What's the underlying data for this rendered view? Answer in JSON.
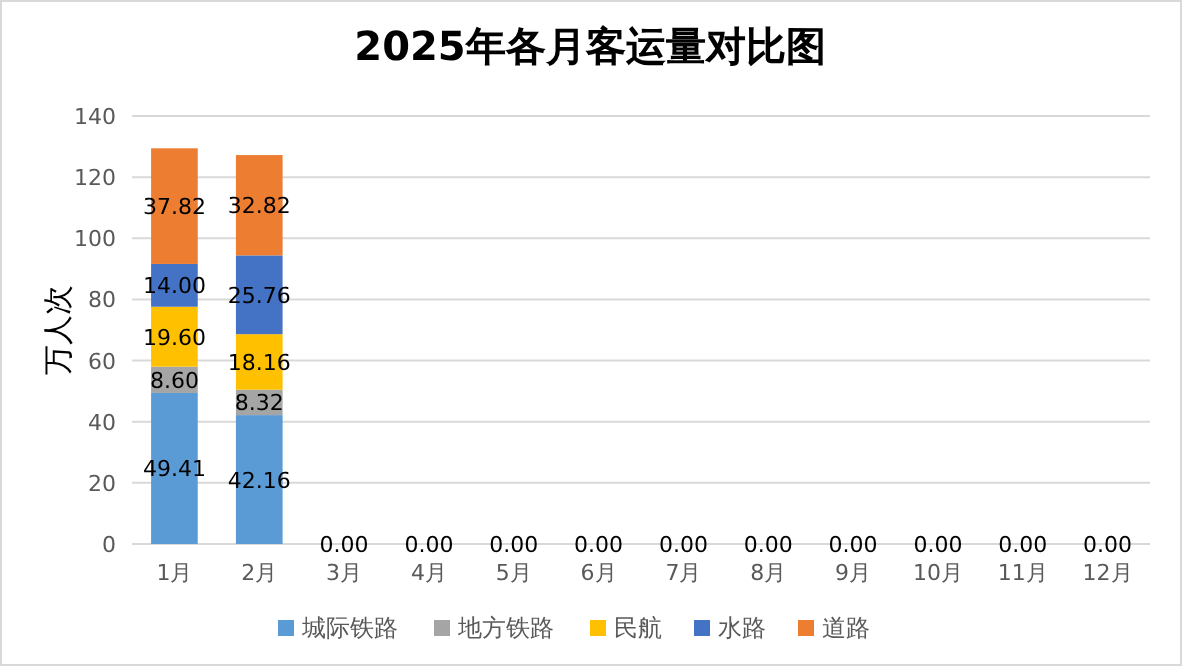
{
  "chart_data": {
    "type": "bar",
    "stacked": true,
    "title": "2025年各月客运量对比图",
    "ylabel": "万人次",
    "categories": [
      "1月",
      "2月",
      "3月",
      "4月",
      "5月",
      "6月",
      "7月",
      "8月",
      "9月",
      "10月",
      "11月",
      "12月"
    ],
    "ylim": [
      0,
      140
    ],
    "yticks": [
      0,
      20,
      40,
      60,
      80,
      100,
      120,
      140
    ],
    "grid": "y",
    "legend": "bottom",
    "series": [
      {
        "name": "城际铁路",
        "color": "#5b9bd5",
        "values": [
          49.41,
          42.16,
          0,
          0,
          0,
          0,
          0,
          0,
          0,
          0,
          0,
          0
        ],
        "value_labels": [
          "49.41",
          "42.16",
          "0.00",
          "0.00",
          "0.00",
          "0.00",
          "0.00",
          "0.00",
          "0.00",
          "0.00",
          "0.00",
          "0.00"
        ]
      },
      {
        "name": "地方铁路",
        "color": "#a5a5a5",
        "values": [
          8.6,
          8.32,
          0,
          0,
          0,
          0,
          0,
          0,
          0,
          0,
          0,
          0
        ],
        "value_labels": [
          "8.60",
          "8.32",
          null,
          null,
          null,
          null,
          null,
          null,
          null,
          null,
          null,
          null
        ]
      },
      {
        "name": "民航",
        "color": "#ffc000",
        "values": [
          19.6,
          18.16,
          0,
          0,
          0,
          0,
          0,
          0,
          0,
          0,
          0,
          0
        ],
        "value_labels": [
          "19.60",
          "18.16",
          null,
          null,
          null,
          null,
          null,
          null,
          null,
          null,
          null,
          null
        ]
      },
      {
        "name": "水路",
        "color": "#4472c4",
        "values": [
          14.0,
          25.76,
          0,
          0,
          0,
          0,
          0,
          0,
          0,
          0,
          0,
          0
        ],
        "value_labels": [
          "14.00",
          "25.76",
          null,
          null,
          null,
          null,
          null,
          null,
          null,
          null,
          null,
          null
        ]
      },
      {
        "name": "道路",
        "color": "#ed7d31",
        "values": [
          37.82,
          32.82,
          0,
          0,
          0,
          0,
          0,
          0,
          0,
          0,
          0,
          0
        ],
        "value_labels": [
          "37.82",
          "32.82",
          null,
          null,
          null,
          null,
          null,
          null,
          null,
          null,
          null,
          null
        ]
      }
    ]
  }
}
